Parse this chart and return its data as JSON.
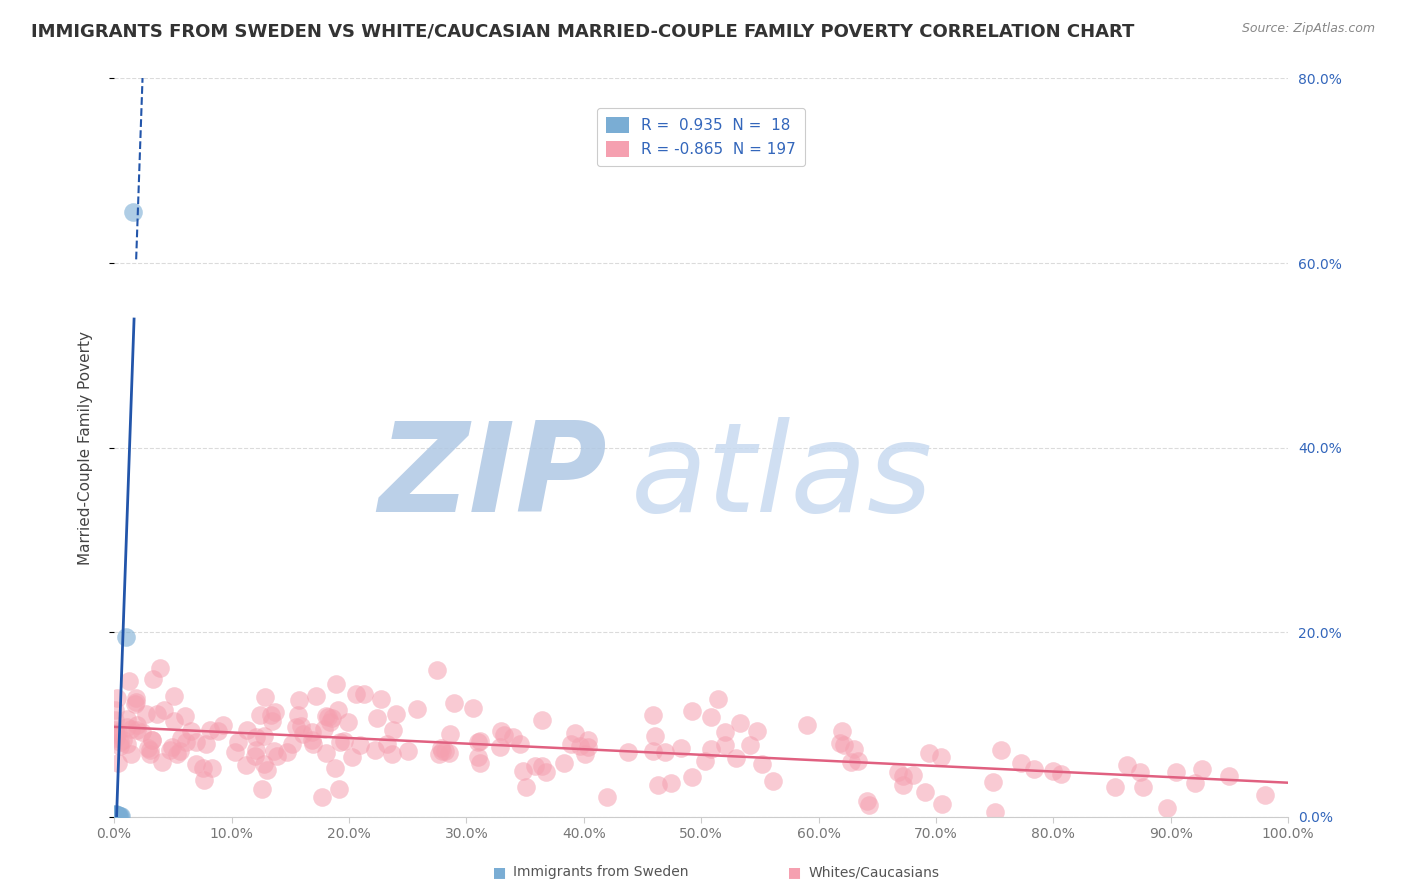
{
  "title": "IMMIGRANTS FROM SWEDEN VS WHITE/CAUCASIAN MARRIED-COUPLE FAMILY POVERTY CORRELATION CHART",
  "source": "Source: ZipAtlas.com",
  "ylabel": "Married-Couple Family Poverty",
  "xlabel": "",
  "xlim": [
    0,
    1.0
  ],
  "ylim": [
    0,
    0.8
  ],
  "yticks": [
    0.0,
    0.2,
    0.4,
    0.6,
    0.8
  ],
  "xticks": [
    0.0,
    0.1,
    0.2,
    0.3,
    0.4,
    0.5,
    0.6,
    0.7,
    0.8,
    0.9,
    1.0
  ],
  "legend_r_blue": "0.935",
  "legend_n_blue": "18",
  "legend_r_pink": "-0.865",
  "legend_n_pink": "197",
  "blue_color": "#7aadd4",
  "blue_line_color": "#2255aa",
  "pink_color": "#f5a0b0",
  "pink_line_color": "#e06080",
  "background_color": "#ffffff",
  "grid_color": "#cccccc",
  "watermark_zip": "ZIP",
  "watermark_atlas": "atlas",
  "watermark_color_zip": "#b8cfe8",
  "watermark_color_atlas": "#c8d8e8",
  "title_fontsize": 13,
  "axis_label_fontsize": 11,
  "tick_fontsize": 10,
  "ytick_color": "#3366BB",
  "xtick_color": "#777777"
}
